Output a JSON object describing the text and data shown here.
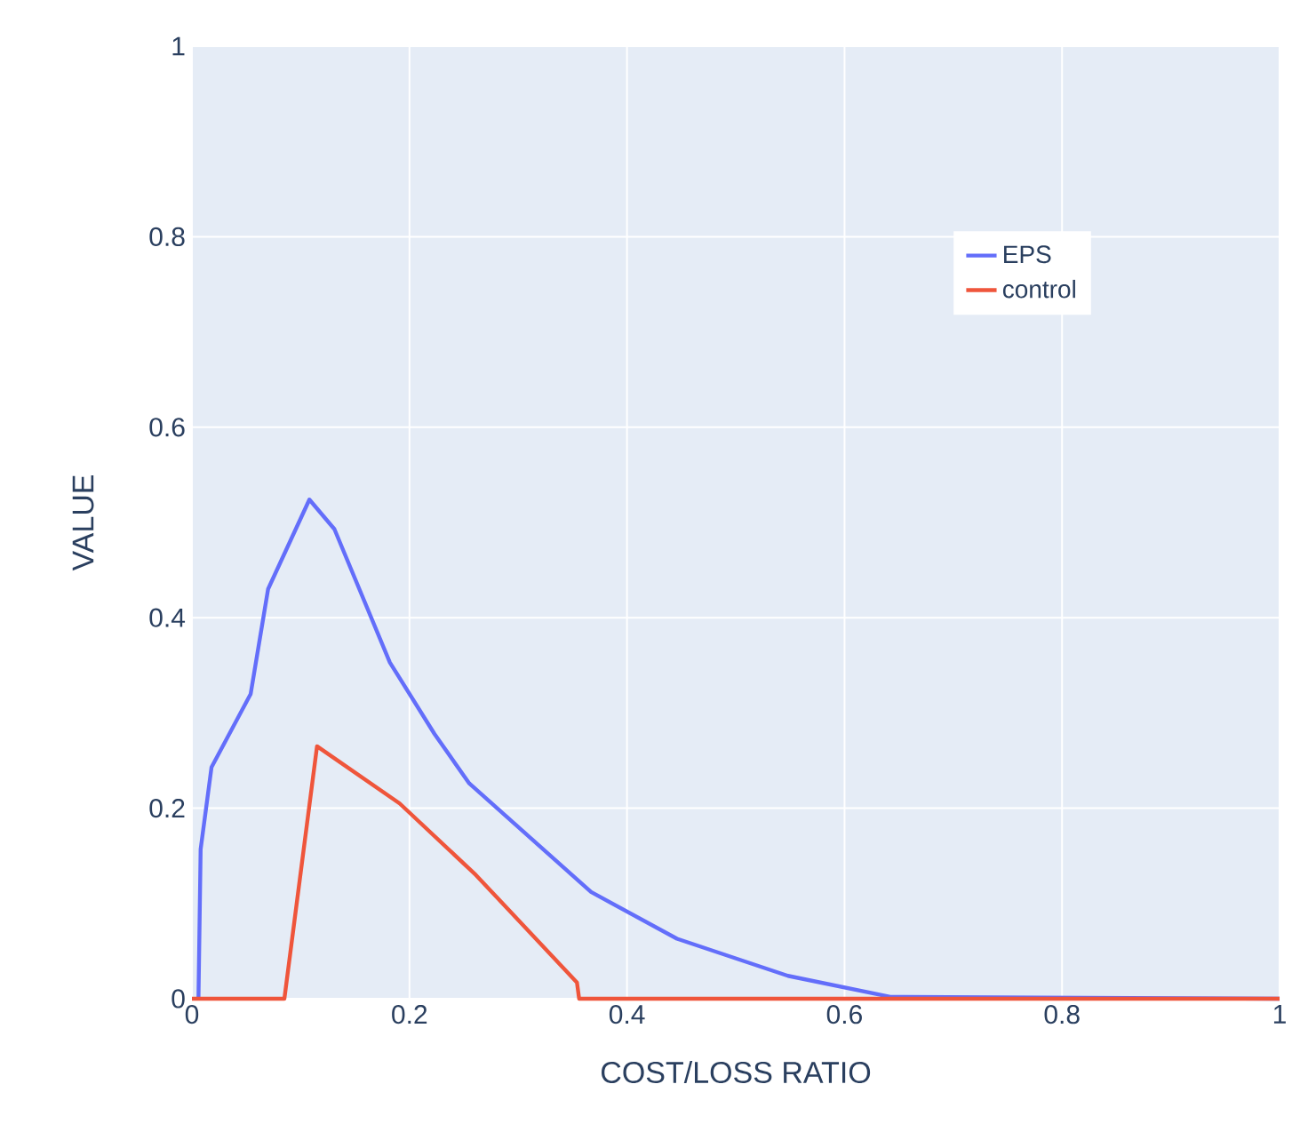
{
  "chart_data": {
    "type": "line",
    "xlabel": "COST/LOSS RATIO",
    "ylabel": "VALUE",
    "xlim": [
      0,
      1
    ],
    "ylim": [
      0,
      1
    ],
    "xticks": [
      0,
      0.2,
      0.4,
      0.6,
      0.8,
      1
    ],
    "yticks": [
      0,
      0.2,
      0.4,
      0.6,
      0.8,
      1
    ],
    "grid": true,
    "legend": "top right",
    "marker": "none",
    "line_style": "solid",
    "series": [
      {
        "name": "EPS",
        "color": "#636efa",
        "x": [
          0.006,
          0.008,
          0.018,
          0.054,
          0.07,
          0.108,
          0.131,
          0.182,
          0.223,
          0.255,
          0.367,
          0.446,
          0.548,
          0.642,
          1
        ],
        "values": [
          0,
          0.157,
          0.243,
          0.32,
          0.43,
          0.524,
          0.493,
          0.353,
          0.278,
          0.226,
          0.112,
          0.063,
          0.024,
          0.002,
          0
        ]
      },
      {
        "name": "control",
        "color": "#ef553b",
        "x": [
          0,
          0.085,
          0.115,
          0.191,
          0.261,
          0.354,
          0.356,
          1
        ],
        "values": [
          0,
          0,
          0.265,
          0.205,
          0.13,
          0.017,
          0,
          0
        ]
      }
    ]
  }
}
